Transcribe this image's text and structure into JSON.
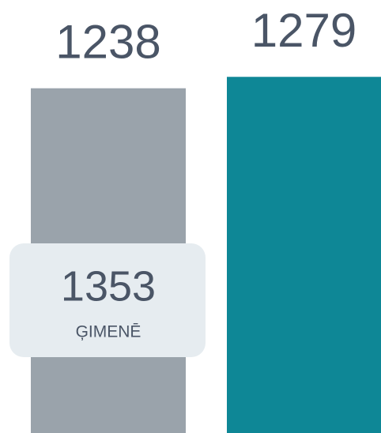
{
  "chart_data": {
    "type": "bar",
    "values": [
      1238,
      1279
    ],
    "colors": [
      "#9aa3ab",
      "#0e8796"
    ],
    "ylim": [
      0,
      1555
    ],
    "annotation": {
      "value": 1353,
      "label": "ĢIMENĒ"
    }
  }
}
